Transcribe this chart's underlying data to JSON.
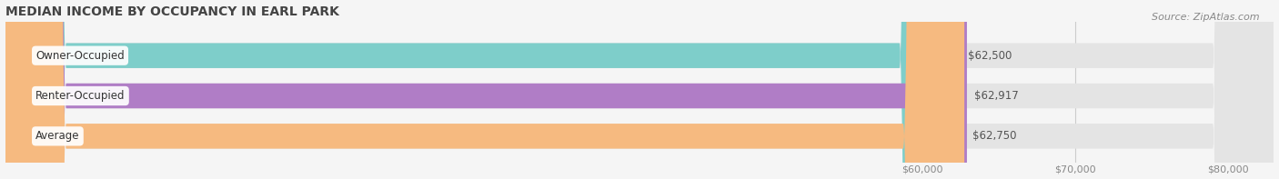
{
  "title": "MEDIAN INCOME BY OCCUPANCY IN EARL PARK",
  "source": "Source: ZipAtlas.com",
  "categories": [
    "Owner-Occupied",
    "Renter-Occupied",
    "Average"
  ],
  "values": [
    62500,
    62917,
    62750
  ],
  "labels": [
    "$62,500",
    "$62,917",
    "$62,750"
  ],
  "bar_colors": [
    "#7ececa",
    "#b07dc6",
    "#f6ba80"
  ],
  "background_color": "#f5f5f5",
  "bar_bg_color": "#e4e4e4",
  "xmin": 0,
  "xmax": 83000,
  "xticks": [
    60000,
    70000,
    80000
  ],
  "xtick_labels": [
    "$60,000",
    "$70,000",
    "$80,000"
  ],
  "title_fontsize": 10,
  "label_fontsize": 8.5,
  "tick_fontsize": 8,
  "source_fontsize": 8
}
